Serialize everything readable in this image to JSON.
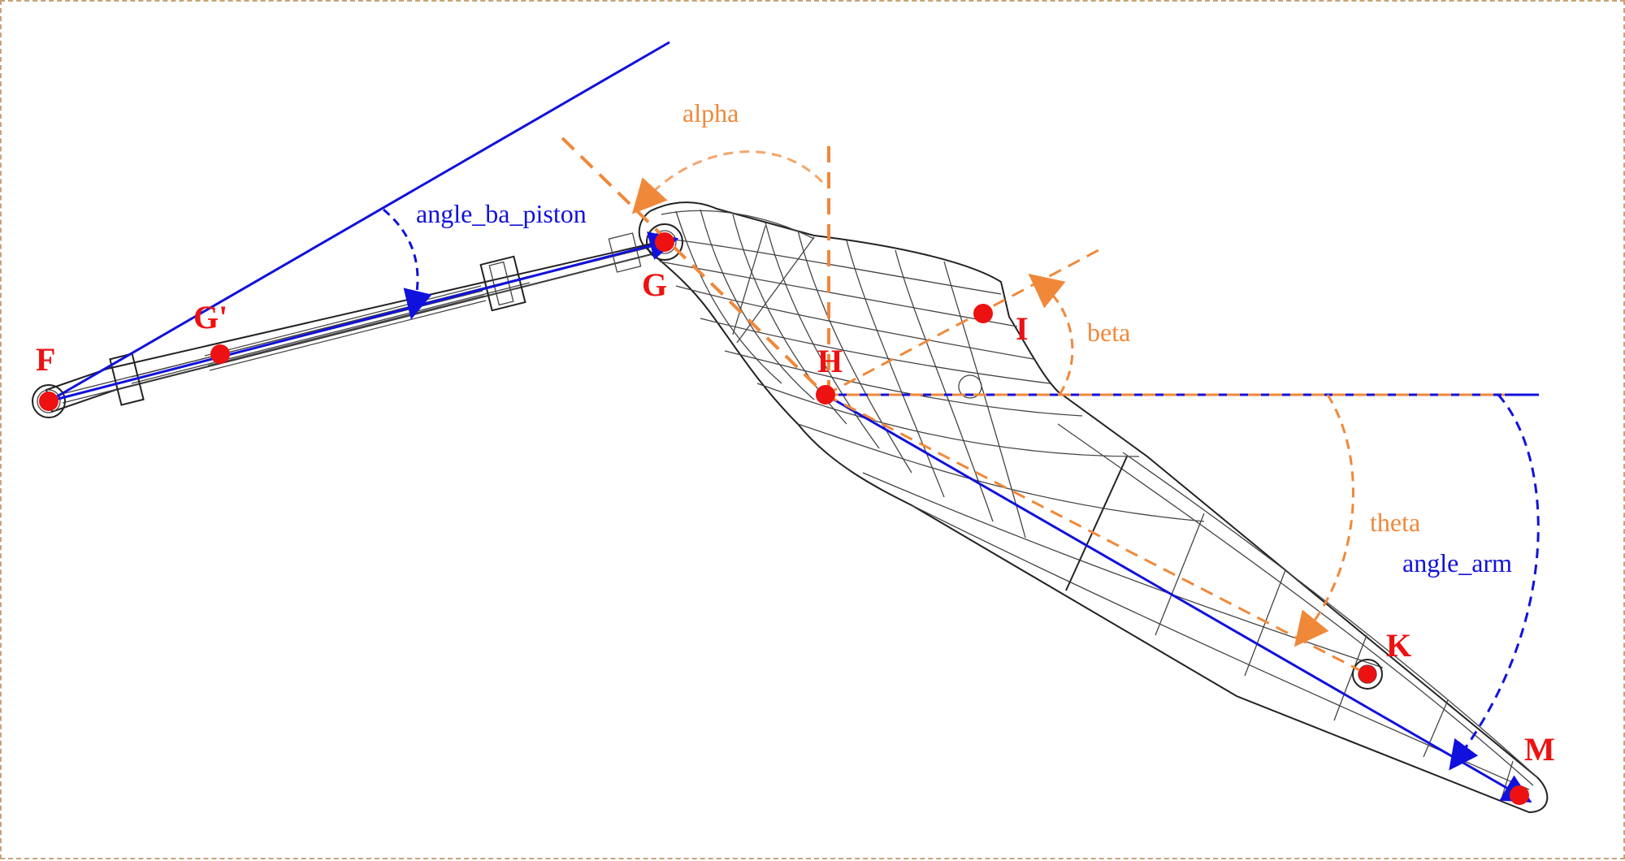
{
  "colors": {
    "point": "#ee1111",
    "blue": "#1111dd",
    "orange": "#f0883a",
    "wire": "#444444"
  },
  "points": {
    "F": "F",
    "G_prime": "G'",
    "G": "G",
    "H": "H",
    "I": "I",
    "K": "K",
    "M": "M"
  },
  "angles": {
    "alpha": "alpha",
    "beta": "beta",
    "theta": "theta",
    "angle_ba_piston": "angle_ba_piston",
    "angle_arm": "angle_arm"
  }
}
